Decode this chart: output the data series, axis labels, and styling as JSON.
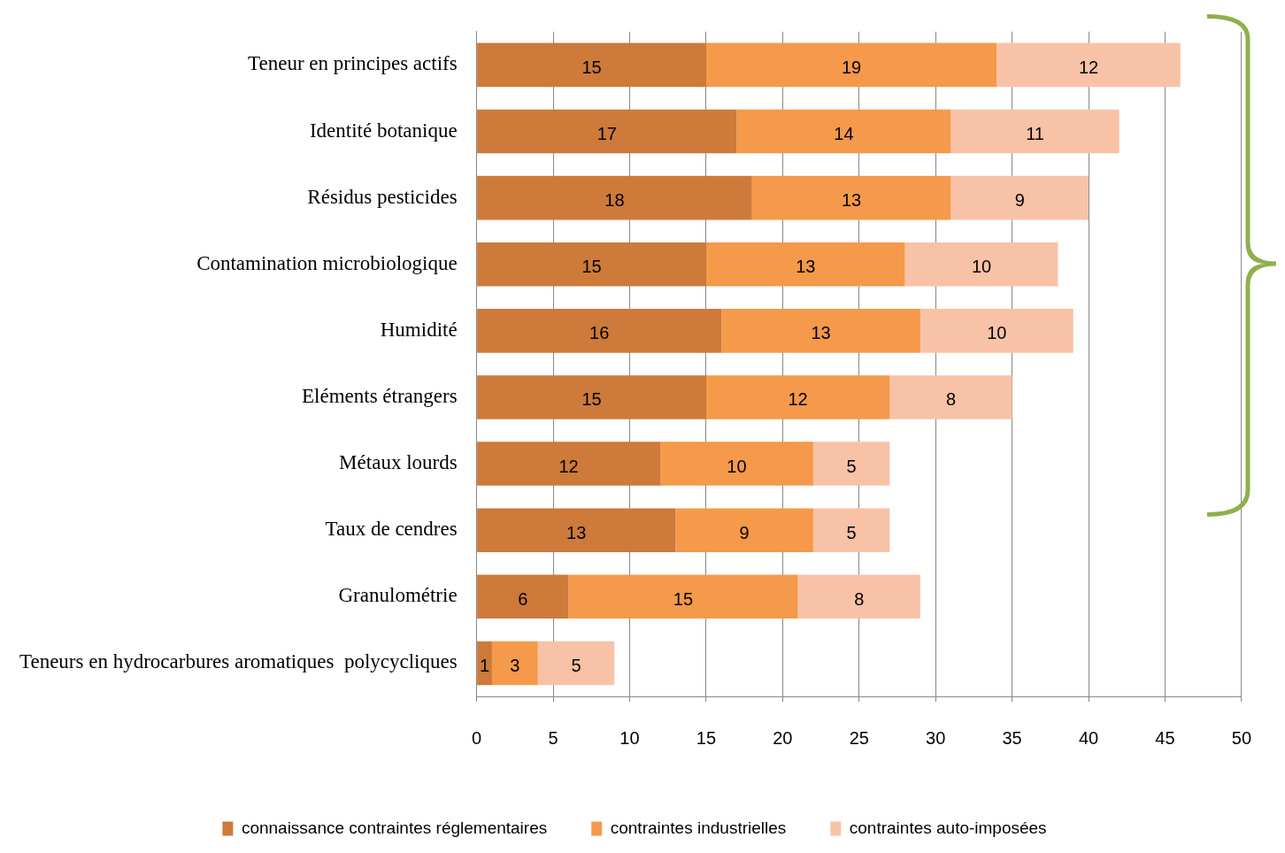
{
  "chart_data": {
    "type": "bar",
    "orientation": "horizontal",
    "stacked": true,
    "categories": [
      "Teneur en principes actifs",
      "Identité botanique",
      "Résidus pesticides",
      "Contamination microbiologique",
      "Humidité",
      "Eléments étrangers",
      "Métaux lourds",
      "Taux de cendres",
      "Granulométrie",
      "Teneurs en hydrocarbures aromatiques  polycycliques"
    ],
    "series": [
      {
        "name": "connaissance contraintes réglementaires",
        "color": "#cd7a3a",
        "values": [
          15,
          17,
          18,
          15,
          16,
          15,
          12,
          13,
          6,
          1
        ]
      },
      {
        "name": "contraintes industrielles",
        "color": "#f5994a",
        "values": [
          19,
          14,
          13,
          13,
          13,
          12,
          10,
          9,
          15,
          3
        ]
      },
      {
        "name": "contraintes auto-imposées",
        "color": "#f8c2a7",
        "values": [
          12,
          11,
          9,
          10,
          10,
          8,
          5,
          5,
          8,
          5
        ]
      }
    ],
    "xlim": [
      0,
      50
    ],
    "xticks": [
      0,
      5,
      10,
      15,
      20,
      25,
      30,
      35,
      40,
      45,
      50
    ],
    "grid": "x",
    "legend": "bottom",
    "data_labels": true
  }
}
